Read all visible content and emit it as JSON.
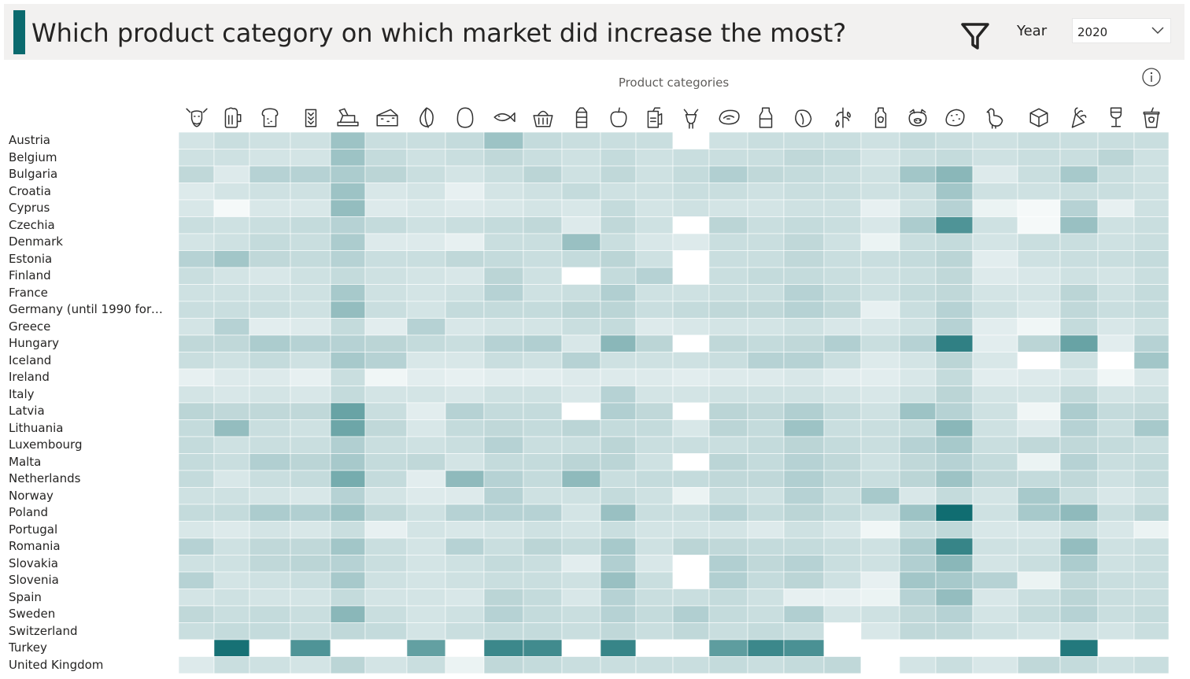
{
  "header": {
    "title": "Which product category on which market did increase the most?",
    "accent_color": "#0b6a6e",
    "filter_icon": "filter-icon",
    "year_label": "Year",
    "year_value": "2020"
  },
  "info_icon": "info-icon",
  "chart_data": {
    "type": "heatmap",
    "xlabel": "Product categories",
    "x_categories": [
      "cattle-icon",
      "beer-icon",
      "bread-icon",
      "cereals-icon",
      "butter-icon",
      "cheese-icon",
      "coffee-icon",
      "egg-icon",
      "fish-icon",
      "basket-icon",
      "milk-carton-icon",
      "fruit-icon",
      "juice-icon",
      "goat-icon",
      "meat-icon",
      "milk-bottle-icon",
      "nuts-icon",
      "olive-icon",
      "oil-icon",
      "pig-icon",
      "potato-icon",
      "poultry-icon",
      "sugar-cube-icon",
      "vegetable-icon",
      "wine-icon",
      "yoghurt-icon"
    ],
    "y_categories": [
      "Austria",
      "Belgium",
      "Bulgaria",
      "Croatia",
      "Cyprus",
      "Czechia",
      "Denmark",
      "Estonia",
      "Finland",
      "France",
      "Germany (until 1990 former...",
      "Greece",
      "Hungary",
      "Iceland",
      "Ireland",
      "Italy",
      "Latvia",
      "Lithuania",
      "Luxembourg",
      "Malta",
      "Netherlands",
      "Norway",
      "Poland",
      "Portugal",
      "Romania",
      "Slovakia",
      "Slovenia",
      "Spain",
      "Sweden",
      "Switzerland",
      "Turkey",
      "United Kingdom"
    ],
    "color_scale": {
      "low": "#ffffff",
      "high": "#0b6a6e"
    },
    "values": [
      [
        0.18,
        0.22,
        0.2,
        0.2,
        0.4,
        0.22,
        0.22,
        0.24,
        0.4,
        0.24,
        0.22,
        0.22,
        0.22,
        null,
        0.2,
        0.22,
        0.22,
        0.22,
        0.2,
        0.24,
        0.22,
        0.2,
        0.22,
        0.22,
        0.22,
        0.22
      ],
      [
        0.2,
        0.2,
        0.18,
        0.18,
        0.4,
        0.24,
        0.2,
        0.22,
        0.26,
        0.22,
        0.2,
        0.24,
        0.2,
        0.22,
        0.22,
        0.22,
        0.26,
        0.24,
        0.18,
        0.22,
        0.24,
        0.2,
        0.22,
        0.22,
        0.28,
        0.2
      ],
      [
        0.26,
        0.14,
        0.3,
        0.3,
        0.34,
        0.28,
        0.22,
        0.18,
        0.22,
        0.28,
        0.2,
        0.26,
        0.2,
        0.24,
        0.32,
        0.26,
        0.24,
        0.22,
        0.2,
        0.38,
        0.48,
        0.14,
        0.22,
        0.36,
        0.22,
        0.2
      ],
      [
        0.14,
        0.18,
        0.2,
        0.2,
        0.4,
        0.16,
        0.18,
        0.1,
        0.18,
        0.2,
        0.24,
        0.2,
        0.2,
        0.22,
        0.22,
        0.2,
        0.22,
        0.22,
        0.2,
        0.22,
        0.38,
        0.2,
        0.2,
        0.22,
        0.22,
        0.2
      ],
      [
        0.16,
        0.04,
        0.16,
        0.16,
        0.44,
        0.14,
        0.16,
        0.14,
        0.16,
        0.18,
        0.16,
        0.24,
        0.18,
        0.2,
        0.18,
        0.18,
        0.2,
        0.2,
        0.1,
        0.2,
        0.3,
        0.08,
        0.04,
        0.3,
        0.1,
        0.2
      ],
      [
        0.22,
        0.2,
        0.22,
        0.24,
        0.3,
        0.24,
        0.2,
        0.22,
        0.24,
        0.26,
        0.14,
        0.26,
        0.2,
        0.0,
        0.28,
        0.22,
        0.24,
        0.22,
        0.16,
        0.34,
        0.72,
        0.2,
        0.04,
        0.42,
        0.2,
        0.22
      ],
      [
        0.18,
        0.2,
        0.24,
        0.22,
        0.34,
        0.14,
        0.14,
        0.1,
        0.22,
        0.22,
        0.42,
        0.22,
        0.16,
        0.14,
        0.22,
        0.22,
        0.26,
        0.2,
        0.08,
        0.22,
        0.24,
        0.18,
        0.22,
        0.22,
        0.2,
        0.22
      ],
      [
        0.3,
        0.38,
        0.26,
        0.24,
        0.3,
        0.22,
        0.22,
        0.26,
        0.24,
        0.22,
        0.24,
        0.28,
        0.2,
        0.0,
        0.22,
        0.22,
        0.26,
        0.22,
        0.22,
        0.24,
        0.28,
        0.12,
        0.2,
        0.22,
        0.22,
        0.24
      ],
      [
        0.22,
        0.18,
        0.16,
        0.2,
        0.24,
        0.2,
        0.18,
        0.16,
        0.28,
        0.2,
        0.0,
        0.24,
        0.3,
        0.0,
        0.22,
        0.24,
        0.24,
        0.22,
        0.2,
        0.22,
        0.26,
        0.14,
        0.16,
        0.2,
        0.18,
        0.22
      ],
      [
        0.2,
        0.2,
        0.2,
        0.2,
        0.36,
        0.2,
        0.18,
        0.2,
        0.3,
        0.2,
        0.22,
        0.32,
        0.2,
        0.2,
        0.22,
        0.22,
        0.3,
        0.24,
        0.2,
        0.24,
        0.26,
        0.18,
        0.18,
        0.28,
        0.2,
        0.24
      ],
      [
        0.22,
        0.22,
        0.22,
        0.2,
        0.44,
        0.22,
        0.18,
        0.24,
        0.24,
        0.24,
        0.28,
        0.28,
        0.22,
        0.24,
        0.26,
        0.26,
        0.3,
        0.26,
        0.1,
        0.22,
        0.3,
        0.2,
        0.16,
        0.26,
        0.22,
        0.24
      ],
      [
        0.18,
        0.3,
        0.12,
        0.14,
        0.24,
        0.12,
        0.3,
        0.16,
        0.18,
        0.18,
        0.22,
        0.24,
        0.14,
        0.16,
        0.18,
        0.18,
        0.2,
        0.16,
        0.16,
        0.2,
        0.3,
        0.12,
        0.06,
        0.24,
        0.16,
        0.2
      ],
      [
        0.26,
        0.26,
        0.34,
        0.3,
        0.3,
        0.28,
        0.24,
        0.22,
        0.3,
        0.32,
        0.16,
        0.48,
        0.28,
        0.0,
        0.26,
        0.24,
        0.26,
        0.32,
        0.22,
        0.3,
        0.85,
        0.12,
        0.28,
        0.62,
        0.12,
        0.3
      ],
      [
        0.22,
        0.2,
        0.24,
        0.2,
        0.36,
        0.3,
        0.16,
        0.16,
        0.22,
        0.2,
        0.3,
        0.2,
        0.2,
        0.2,
        0.22,
        0.3,
        0.3,
        0.22,
        0.14,
        0.18,
        0.28,
        0.16,
        0.0,
        0.2,
        0.0,
        0.38
      ],
      [
        0.1,
        0.14,
        0.14,
        0.1,
        0.22,
        0.06,
        0.12,
        0.1,
        0.12,
        0.12,
        0.14,
        0.14,
        0.14,
        0.12,
        0.14,
        0.14,
        0.16,
        0.12,
        0.12,
        0.16,
        0.24,
        0.12,
        0.14,
        0.16,
        0.06,
        0.16
      ],
      [
        0.18,
        0.16,
        0.18,
        0.16,
        0.24,
        0.18,
        0.18,
        0.16,
        0.2,
        0.2,
        0.16,
        0.3,
        0.18,
        0.18,
        0.2,
        0.2,
        0.2,
        0.18,
        0.16,
        0.2,
        0.28,
        0.18,
        0.18,
        0.26,
        0.18,
        0.2
      ],
      [
        0.28,
        0.26,
        0.26,
        0.26,
        0.62,
        0.22,
        0.12,
        0.3,
        0.24,
        0.24,
        0.0,
        0.32,
        0.26,
        0.0,
        0.28,
        0.26,
        0.32,
        0.24,
        0.2,
        0.4,
        0.3,
        0.2,
        0.06,
        0.34,
        0.24,
        0.26
      ],
      [
        0.24,
        0.44,
        0.22,
        0.2,
        0.6,
        0.26,
        0.16,
        0.24,
        0.26,
        0.24,
        0.28,
        0.24,
        0.24,
        0.16,
        0.28,
        0.24,
        0.4,
        0.22,
        0.22,
        0.24,
        0.48,
        0.2,
        0.14,
        0.3,
        0.22,
        0.36
      ],
      [
        0.24,
        0.2,
        0.22,
        0.22,
        0.32,
        0.22,
        0.2,
        0.22,
        0.3,
        0.22,
        0.22,
        0.28,
        0.22,
        0.22,
        0.22,
        0.24,
        0.28,
        0.24,
        0.22,
        0.3,
        0.36,
        0.22,
        0.26,
        0.26,
        0.24,
        0.22
      ],
      [
        0.24,
        0.22,
        0.32,
        0.28,
        0.36,
        0.24,
        0.26,
        0.18,
        0.24,
        0.24,
        0.28,
        0.28,
        0.2,
        0.0,
        0.28,
        0.24,
        0.3,
        0.26,
        0.2,
        0.26,
        0.3,
        0.24,
        0.08,
        0.3,
        0.22,
        0.24
      ],
      [
        0.24,
        0.16,
        0.22,
        0.24,
        0.56,
        0.24,
        0.12,
        0.46,
        0.3,
        0.24,
        0.46,
        0.22,
        0.24,
        0.24,
        0.26,
        0.26,
        0.32,
        0.26,
        0.22,
        0.28,
        0.4,
        0.26,
        0.24,
        0.26,
        0.2,
        0.24
      ],
      [
        0.2,
        0.2,
        0.18,
        0.16,
        0.3,
        0.18,
        0.14,
        0.14,
        0.3,
        0.2,
        0.2,
        0.24,
        0.2,
        0.08,
        0.22,
        0.2,
        0.3,
        0.22,
        0.36,
        0.16,
        0.24,
        0.18,
        0.36,
        0.22,
        0.16,
        0.2
      ],
      [
        0.24,
        0.24,
        0.34,
        0.32,
        0.4,
        0.26,
        0.2,
        0.3,
        0.3,
        0.3,
        0.18,
        0.42,
        0.22,
        0.22,
        0.3,
        0.24,
        0.28,
        0.24,
        0.2,
        0.4,
        0.98,
        0.2,
        0.36,
        0.46,
        0.22,
        0.28
      ],
      [
        0.16,
        0.14,
        0.18,
        0.16,
        0.22,
        0.1,
        0.18,
        0.16,
        0.18,
        0.2,
        0.18,
        0.22,
        0.18,
        0.18,
        0.18,
        0.14,
        0.2,
        0.16,
        0.06,
        0.22,
        0.26,
        0.16,
        0.16,
        0.22,
        0.16,
        0.08
      ],
      [
        0.3,
        0.2,
        0.26,
        0.26,
        0.38,
        0.22,
        0.18,
        0.3,
        0.22,
        0.28,
        0.24,
        0.36,
        0.2,
        0.28,
        0.26,
        0.24,
        0.24,
        0.22,
        0.2,
        0.34,
        0.82,
        0.2,
        0.2,
        0.44,
        0.2,
        0.22
      ],
      [
        0.2,
        0.2,
        0.26,
        0.28,
        0.3,
        0.22,
        0.18,
        0.2,
        0.24,
        0.22,
        0.12,
        0.32,
        0.16,
        0.0,
        0.32,
        0.26,
        0.3,
        0.22,
        0.2,
        0.32,
        0.48,
        0.18,
        0.22,
        0.34,
        0.2,
        0.22
      ],
      [
        0.3,
        0.18,
        0.2,
        0.22,
        0.36,
        0.2,
        0.18,
        0.2,
        0.22,
        0.22,
        0.2,
        0.42,
        0.22,
        0.0,
        0.32,
        0.24,
        0.28,
        0.2,
        0.1,
        0.38,
        0.36,
        0.3,
        0.08,
        0.26,
        0.22,
        0.22
      ],
      [
        0.18,
        0.2,
        0.18,
        0.18,
        0.24,
        0.18,
        0.18,
        0.16,
        0.28,
        0.24,
        0.16,
        0.3,
        0.22,
        0.22,
        0.24,
        0.2,
        0.1,
        0.1,
        0.08,
        0.3,
        0.44,
        0.16,
        0.22,
        0.28,
        0.22,
        0.22
      ],
      [
        0.26,
        0.22,
        0.24,
        0.22,
        0.48,
        0.22,
        0.18,
        0.2,
        0.3,
        0.24,
        0.22,
        0.3,
        0.24,
        0.32,
        0.24,
        0.22,
        0.32,
        0.18,
        0.2,
        0.26,
        0.3,
        0.18,
        0.24,
        0.3,
        0.22,
        0.24
      ],
      [
        0.22,
        0.24,
        0.24,
        0.22,
        0.26,
        0.24,
        0.18,
        0.22,
        0.24,
        0.24,
        0.22,
        0.26,
        0.22,
        0.26,
        0.22,
        0.24,
        0.22,
        0.0,
        0.16,
        0.26,
        0.26,
        0.2,
        0.18,
        0.2,
        0.18,
        0.22
      ],
      [
        0.0,
        0.95,
        0.0,
        0.72,
        0.0,
        0.0,
        0.64,
        0.0,
        0.8,
        0.78,
        0.0,
        0.82,
        0.0,
        0.0,
        0.66,
        0.8,
        0.74,
        0.0,
        0.0,
        0.0,
        0.0,
        0.0,
        0.0,
        0.9,
        0.0,
        0.0
      ],
      [
        0.14,
        0.22,
        0.2,
        0.18,
        0.28,
        0.18,
        0.22,
        0.08,
        0.26,
        0.24,
        0.22,
        0.22,
        0.22,
        0.22,
        0.24,
        0.22,
        0.24,
        0.26,
        0.0,
        0.18,
        0.22,
        0.16,
        0.26,
        0.24,
        0.2,
        0.22
      ]
    ]
  }
}
